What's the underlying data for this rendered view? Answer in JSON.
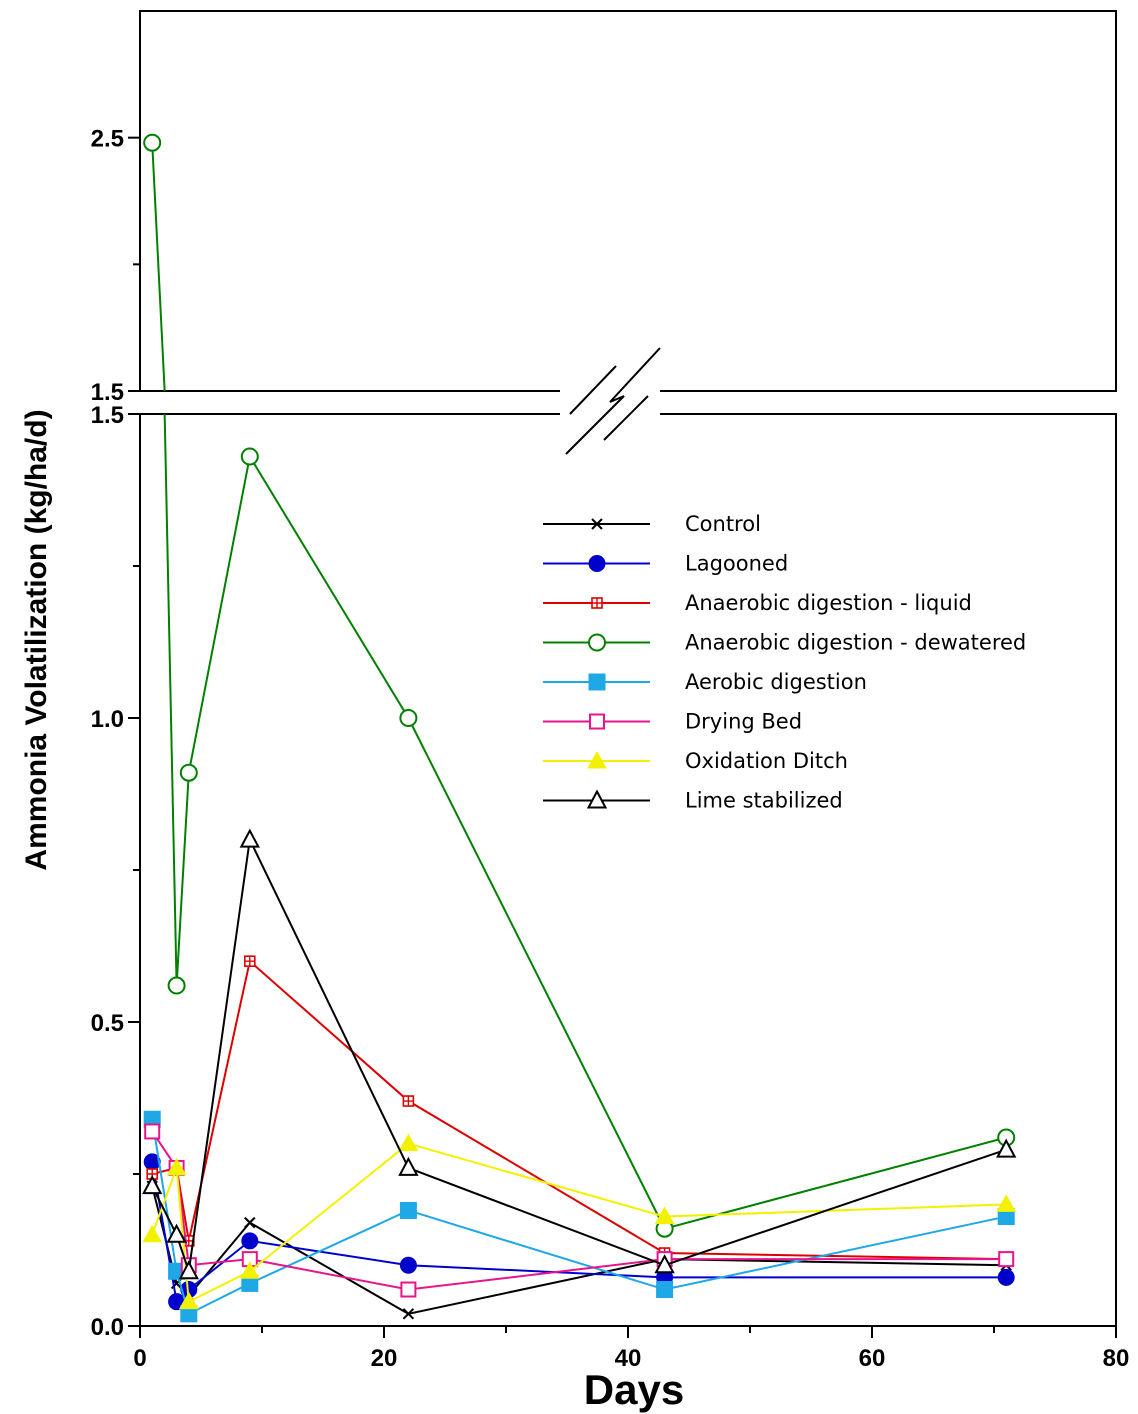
{
  "chart_data": {
    "type": "line",
    "title": "",
    "xlabel": "Days",
    "ylabel": "Ammonia Volatilization (kg/ha/d)",
    "xlim": [
      0,
      80
    ],
    "x_ticks": [
      "0",
      "20",
      "40",
      "60",
      "80"
    ],
    "y_axis_break": true,
    "ylim_lower": [
      0,
      1.5
    ],
    "y_ticks_lower": [
      "0.0",
      "0.5",
      "1.0",
      "1.5"
    ],
    "ylim_upper": [
      1.5,
      3.0
    ],
    "y_ticks_upper": [
      "1.5",
      "2.5"
    ],
    "legend_position": "upper-right",
    "grid": false,
    "series": [
      {
        "name": "Control",
        "color": "#000000",
        "marker": "x",
        "x": [
          1,
          3,
          4,
          9,
          22,
          43,
          71
        ],
        "y": [
          0.23,
          0.07,
          0.05,
          0.17,
          0.02,
          0.11,
          0.1
        ]
      },
      {
        "name": "Lagooned",
        "color": "#0000CC",
        "marker": "filled-circle",
        "x": [
          1,
          3,
          4,
          9,
          22,
          43,
          71
        ],
        "y": [
          0.27,
          0.04,
          0.06,
          0.14,
          0.1,
          0.08,
          0.08
        ]
      },
      {
        "name": "Anaerobic digestion - liquid",
        "color": "#DD0000",
        "marker": "square-plus",
        "x": [
          1,
          3,
          4,
          9,
          22,
          43,
          71
        ],
        "y": [
          0.25,
          0.26,
          0.14,
          0.6,
          0.37,
          0.12,
          0.11
        ]
      },
      {
        "name": "Anaerobic digestion - dewatered",
        "color": "#008000",
        "marker": "open-circle",
        "x": [
          1,
          3,
          4,
          9,
          22,
          43,
          71
        ],
        "y": [
          2.48,
          0.56,
          0.91,
          1.43,
          1.0,
          0.16,
          0.31
        ]
      },
      {
        "name": "Aerobic digestion",
        "color": "#1EA8E6",
        "marker": "filled-square",
        "x": [
          1,
          3,
          4,
          9,
          22,
          43,
          71
        ],
        "y": [
          0.34,
          0.09,
          0.02,
          0.07,
          0.19,
          0.06,
          0.18
        ]
      },
      {
        "name": "Drying Bed",
        "color": "#E6158C",
        "marker": "open-square",
        "x": [
          1,
          3,
          4,
          9,
          22,
          43,
          71
        ],
        "y": [
          0.32,
          0.26,
          0.1,
          0.11,
          0.06,
          0.11,
          0.11
        ]
      },
      {
        "name": "Oxidation Ditch",
        "color": "#F2F200",
        "marker": "filled-triangle",
        "x": [
          1,
          3,
          4,
          9,
          22,
          43,
          71
        ],
        "y": [
          0.15,
          0.26,
          0.04,
          0.09,
          0.3,
          0.18,
          0.2
        ]
      },
      {
        "name": "Lime stabilized",
        "color": "#000000",
        "marker": "open-triangle",
        "x": [
          1,
          3,
          4,
          9,
          22,
          43,
          71
        ],
        "y": [
          0.23,
          0.15,
          0.09,
          0.8,
          0.26,
          0.1,
          0.29
        ]
      }
    ]
  }
}
